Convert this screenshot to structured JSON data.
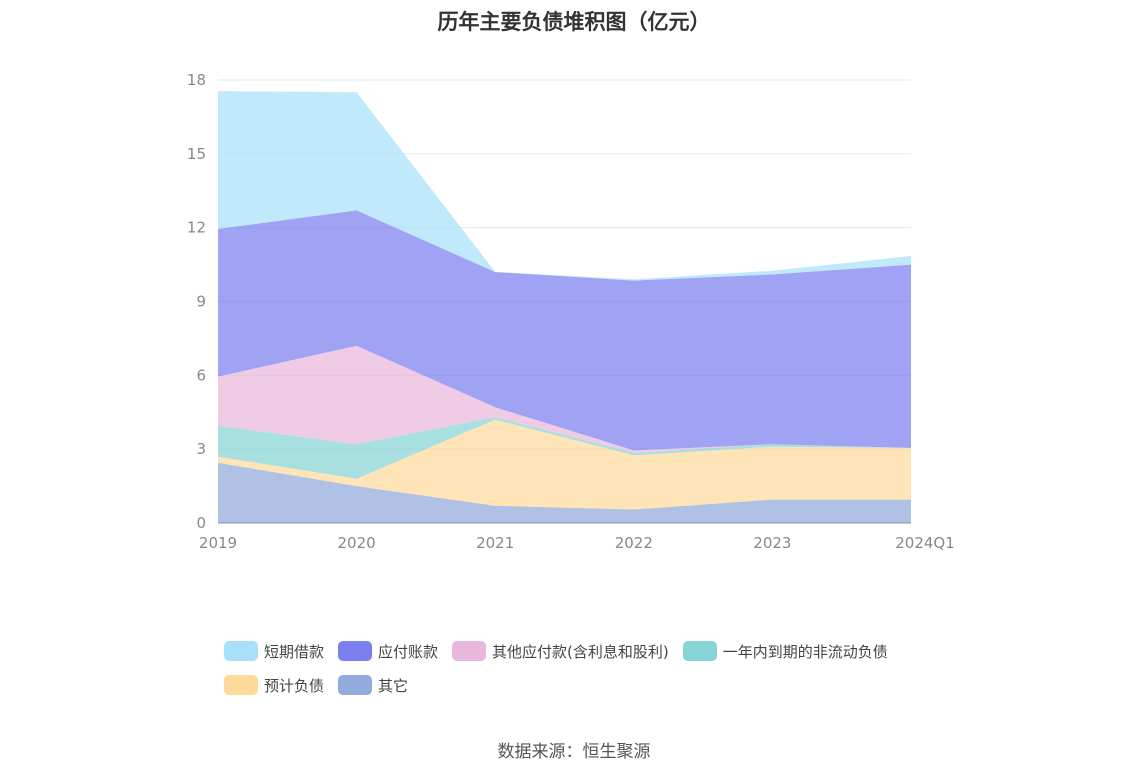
{
  "chart_data": {
    "type": "area",
    "stacked": true,
    "title": "历年主要负债堆积图（亿元）",
    "categories": [
      "2019",
      "2020",
      "2021",
      "2022",
      "2023",
      "2024Q1"
    ],
    "ylim": [
      0,
      18
    ],
    "yticks": [
      0,
      3,
      6,
      9,
      12,
      15,
      18
    ],
    "grid": true,
    "legend_position": "bottom",
    "series": [
      {
        "name": "其它",
        "color": "#90abdc",
        "values": [
          2.45,
          1.5,
          0.7,
          0.55,
          0.95,
          0.95
        ]
      },
      {
        "name": "预计负债",
        "color": "#fdd99a",
        "values": [
          0.25,
          0.3,
          3.5,
          2.2,
          2.15,
          2.1
        ]
      },
      {
        "name": "一年内到期的非流动负债",
        "color": "#86d4d6",
        "values": [
          1.25,
          1.4,
          0.1,
          0.1,
          0.1,
          0.0
        ]
      },
      {
        "name": "其他应付款(含利息和股利)",
        "color": "#e9b7db",
        "values": [
          2.0,
          4.0,
          0.4,
          0.1,
          0.0,
          0.0
        ]
      },
      {
        "name": "应付账款",
        "color": "#7b7ff0",
        "values": [
          6.0,
          5.5,
          5.5,
          6.9,
          6.9,
          7.45
        ]
      },
      {
        "name": "短期借款",
        "color": "#a8e0fa",
        "values": [
          5.6,
          4.8,
          0.0,
          0.05,
          0.15,
          0.35
        ]
      }
    ]
  },
  "legend": [
    {
      "name": "短期借款",
      "color": "#a8e0fa"
    },
    {
      "name": "应付账款",
      "color": "#7b7ff0"
    },
    {
      "name": "其他应付款(含利息和股利)",
      "color": "#e9b7db"
    },
    {
      "name": "一年内到期的非流动负债",
      "color": "#86d4d6"
    },
    {
      "name": "预计负债",
      "color": "#fdd99a"
    },
    {
      "name": "其它",
      "color": "#90abdc"
    }
  ],
  "source": "数据来源：恒生聚源"
}
